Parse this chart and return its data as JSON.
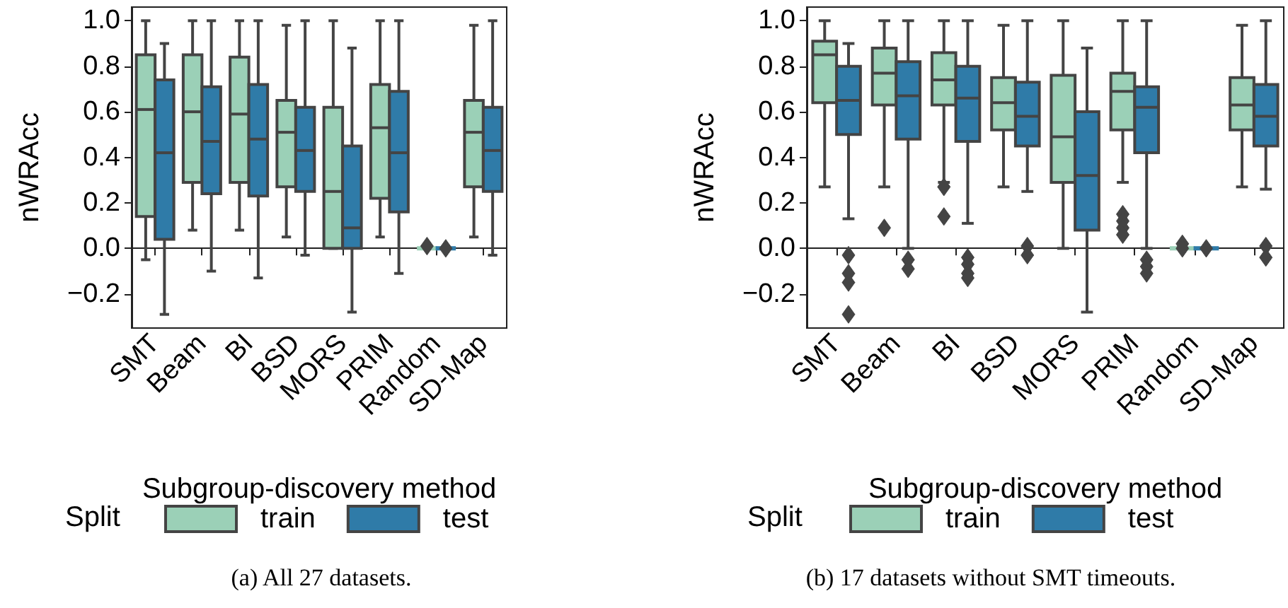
{
  "chart_data": [
    {
      "type": "box",
      "xlabel": "Subgroup-discovery method",
      "ylabel": "nWRAcc",
      "legend_title": "Split",
      "legend": "bottom",
      "marker": "diamond",
      "annotations": [
        "(a) All 27 datasets."
      ],
      "categories": [
        "SMT",
        "Beam",
        "BI",
        "BSD",
        "MORS",
        "PRIM",
        "Random",
        "SD-Map"
      ],
      "ylim": [
        -0.35,
        1.06
      ],
      "yticks": [
        {
          "value": -0.2,
          "label": "−0.2"
        },
        {
          "value": 0,
          "label": "0.0"
        },
        {
          "value": 0.2,
          "label": "0.2"
        },
        {
          "value": 0.4,
          "label": "0.4"
        },
        {
          "value": 0.6,
          "label": "0.6"
        },
        {
          "value": 0.8,
          "label": "0.8"
        },
        {
          "value": 1.0,
          "label": "1.0"
        }
      ],
      "series": [
        {
          "name": "train",
          "color": "#9bd0b7",
          "boxes": [
            {
              "low": -0.05,
              "q1": 0.14,
              "median": 0.61,
              "q3": 0.85,
              "high": 1.0
            },
            {
              "low": 0.08,
              "q1": 0.29,
              "median": 0.6,
              "q3": 0.85,
              "high": 1.0
            },
            {
              "low": 0.08,
              "q1": 0.29,
              "median": 0.59,
              "q3": 0.84,
              "high": 1.0
            },
            {
              "low": 0.05,
              "q1": 0.27,
              "median": 0.51,
              "q3": 0.65,
              "high": 0.98
            },
            {
              "low": 0.0,
              "q1": 0.0,
              "median": 0.25,
              "q3": 0.62,
              "high": 1.0
            },
            {
              "low": 0.05,
              "q1": 0.22,
              "median": 0.53,
              "q3": 0.72,
              "high": 1.0
            },
            {
              "low": 0.0,
              "q1": 0.0,
              "median": 0.0,
              "q3": 0.0,
              "high": 0.0,
              "outliers": [
                0.01
              ]
            },
            {
              "low": 0.05,
              "q1": 0.27,
              "median": 0.51,
              "q3": 0.65,
              "high": 0.98
            }
          ]
        },
        {
          "name": "test",
          "color": "#2f7ba8",
          "boxes": [
            {
              "low": -0.29,
              "q1": 0.04,
              "median": 0.42,
              "q3": 0.74,
              "high": 0.9
            },
            {
              "low": -0.1,
              "q1": 0.24,
              "median": 0.47,
              "q3": 0.71,
              "high": 1.0
            },
            {
              "low": -0.13,
              "q1": 0.23,
              "median": 0.48,
              "q3": 0.72,
              "high": 1.0
            },
            {
              "low": -0.03,
              "q1": 0.25,
              "median": 0.43,
              "q3": 0.62,
              "high": 1.0
            },
            {
              "low": -0.28,
              "q1": 0.0,
              "median": 0.09,
              "q3": 0.45,
              "high": 0.88
            },
            {
              "low": -0.11,
              "q1": 0.16,
              "median": 0.42,
              "q3": 0.69,
              "high": 1.0
            },
            {
              "low": 0.0,
              "q1": 0.0,
              "median": 0.0,
              "q3": 0.0,
              "high": 0.0,
              "outliers": [
                0.0
              ]
            },
            {
              "low": -0.03,
              "q1": 0.25,
              "median": 0.43,
              "q3": 0.62,
              "high": 1.0
            }
          ]
        }
      ]
    },
    {
      "type": "box",
      "xlabel": "Subgroup-discovery method",
      "ylabel": "nWRAcc",
      "legend_title": "Split",
      "legend": "bottom",
      "marker": "diamond",
      "annotations": [
        "(b) 17 datasets without SMT timeouts."
      ],
      "categories": [
        "SMT",
        "Beam",
        "BI",
        "BSD",
        "MORS",
        "PRIM",
        "Random",
        "SD-Map"
      ],
      "ylim": [
        -0.35,
        1.06
      ],
      "yticks": [
        {
          "value": -0.2,
          "label": "−0.2"
        },
        {
          "value": 0,
          "label": "0.0"
        },
        {
          "value": 0.2,
          "label": "0.2"
        },
        {
          "value": 0.4,
          "label": "0.4"
        },
        {
          "value": 0.6,
          "label": "0.6"
        },
        {
          "value": 0.8,
          "label": "0.8"
        },
        {
          "value": 1.0,
          "label": "1.0"
        }
      ],
      "series": [
        {
          "name": "train",
          "color": "#9bd0b7",
          "boxes": [
            {
              "low": 0.27,
              "q1": 0.64,
              "median": 0.85,
              "q3": 0.91,
              "high": 1.0
            },
            {
              "low": 0.27,
              "q1": 0.63,
              "median": 0.77,
              "q3": 0.88,
              "high": 1.0,
              "outliers": [
                0.09
              ]
            },
            {
              "low": 0.29,
              "q1": 0.63,
              "median": 0.74,
              "q3": 0.86,
              "high": 1.0,
              "outliers": [
                0.27,
                0.14
              ]
            },
            {
              "low": 0.27,
              "q1": 0.52,
              "median": 0.64,
              "q3": 0.75,
              "high": 0.98
            },
            {
              "low": 0.0,
              "q1": 0.29,
              "median": 0.49,
              "q3": 0.76,
              "high": 1.0
            },
            {
              "low": 0.29,
              "q1": 0.52,
              "median": 0.69,
              "q3": 0.77,
              "high": 1.0,
              "outliers": [
                0.15,
                0.12,
                0.09,
                0.06
              ]
            },
            {
              "low": 0.0,
              "q1": 0.0,
              "median": 0.0,
              "q3": 0.0,
              "high": 0.0,
              "outliers": [
                0.02,
                0.0
              ]
            },
            {
              "low": 0.27,
              "q1": 0.52,
              "median": 0.63,
              "q3": 0.75,
              "high": 0.98
            }
          ]
        },
        {
          "name": "test",
          "color": "#2f7ba8",
          "boxes": [
            {
              "low": 0.13,
              "q1": 0.5,
              "median": 0.65,
              "q3": 0.8,
              "high": 0.9,
              "outliers": [
                -0.03,
                -0.11,
                -0.15,
                -0.29
              ]
            },
            {
              "low": 0.0,
              "q1": 0.48,
              "median": 0.67,
              "q3": 0.82,
              "high": 1.0,
              "outliers": [
                -0.05,
                -0.09
              ]
            },
            {
              "low": 0.11,
              "q1": 0.47,
              "median": 0.66,
              "q3": 0.8,
              "high": 1.0,
              "outliers": [
                -0.04,
                -0.07,
                -0.11,
                -0.13
              ]
            },
            {
              "low": 0.25,
              "q1": 0.45,
              "median": 0.58,
              "q3": 0.73,
              "high": 1.0,
              "outliers": [
                0.01,
                -0.03
              ]
            },
            {
              "low": -0.28,
              "q1": 0.08,
              "median": 0.32,
              "q3": 0.6,
              "high": 0.88
            },
            {
              "low": 0.0,
              "q1": 0.42,
              "median": 0.62,
              "q3": 0.71,
              "high": 1.0,
              "outliers": [
                -0.05,
                -0.08,
                -0.11
              ]
            },
            {
              "low": 0.0,
              "q1": 0.0,
              "median": 0.0,
              "q3": 0.0,
              "high": 0.0,
              "outliers": [
                0.0
              ]
            },
            {
              "low": 0.26,
              "q1": 0.45,
              "median": 0.58,
              "q3": 0.72,
              "high": 1.0,
              "outliers": [
                0.01,
                -0.04
              ]
            }
          ]
        }
      ]
    }
  ]
}
